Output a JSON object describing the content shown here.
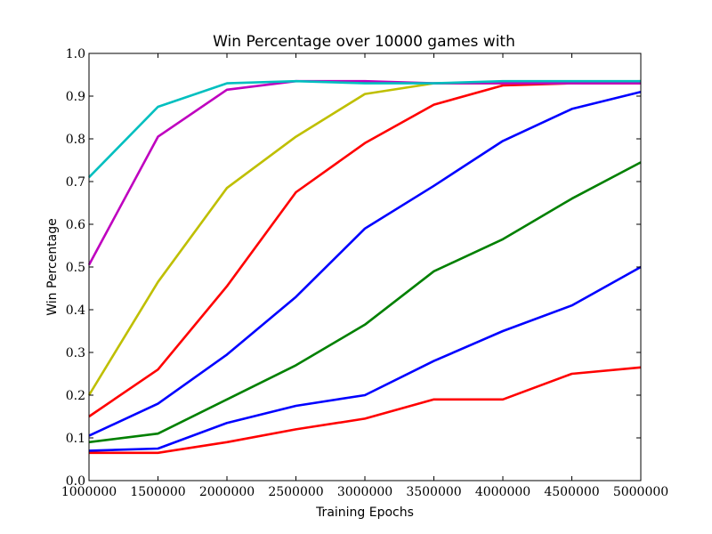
{
  "chart_data": {
    "type": "line",
    "title": "Win Percentage over 10000 games with",
    "xlabel": "Training Epochs",
    "ylabel": "Win Percentage",
    "xlim": [
      1000000,
      5000000
    ],
    "ylim": [
      0.0,
      1.0
    ],
    "grid": false,
    "legend": "none",
    "x": [
      1000000,
      1500000,
      2000000,
      2500000,
      3000000,
      3500000,
      4000000,
      4500000,
      5000000
    ],
    "x_tick_labels": [
      "1000000",
      "1500000",
      "2000000",
      "2500000",
      "3000000",
      "3500000",
      "4000000",
      "4500000",
      "5000000"
    ],
    "y_ticks": [
      0.0,
      0.1,
      0.2,
      0.3,
      0.4,
      0.5,
      0.6,
      0.7,
      0.8,
      0.9,
      1.0
    ],
    "y_tick_labels": [
      "0.0",
      "0.1",
      "0.2",
      "0.3",
      "0.4",
      "0.5",
      "0.6",
      "0.7",
      "0.8",
      "0.9",
      "1.0"
    ],
    "series": [
      {
        "color": "#ff0000",
        "values": [
          0.065,
          0.065,
          0.09,
          0.12,
          0.145,
          0.19,
          0.19,
          0.25,
          0.265
        ]
      },
      {
        "color": "#0000ff",
        "values": [
          0.07,
          0.075,
          0.135,
          0.175,
          0.2,
          0.28,
          0.35,
          0.41,
          0.5
        ]
      },
      {
        "color": "#008000",
        "values": [
          0.09,
          0.11,
          0.19,
          0.27,
          0.365,
          0.49,
          0.565,
          0.66,
          0.745
        ]
      },
      {
        "color": "#0000ff",
        "values": [
          0.105,
          0.18,
          0.295,
          0.43,
          0.59,
          0.69,
          0.795,
          0.87,
          0.91
        ]
      },
      {
        "color": "#ff0000",
        "values": [
          0.15,
          0.26,
          0.455,
          0.675,
          0.79,
          0.88,
          0.925,
          0.93,
          0.93
        ]
      },
      {
        "color": "#bfbf00",
        "values": [
          0.2,
          0.465,
          0.685,
          0.805,
          0.905,
          0.93,
          0.93,
          0.93,
          0.935
        ]
      },
      {
        "color": "#bf00bf",
        "values": [
          0.505,
          0.805,
          0.915,
          0.935,
          0.935,
          0.93,
          0.93,
          0.93,
          0.93
        ]
      },
      {
        "color": "#00bfbf",
        "values": [
          0.71,
          0.875,
          0.93,
          0.935,
          0.93,
          0.93,
          0.935,
          0.935,
          0.935
        ]
      }
    ]
  }
}
